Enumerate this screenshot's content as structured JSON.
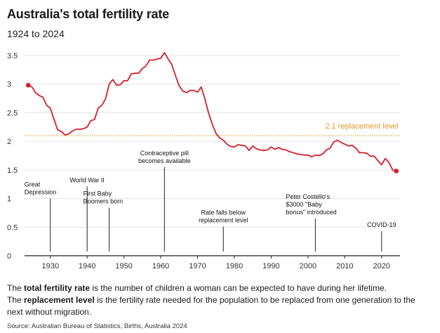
{
  "header": {
    "title": "Australia's total fertility rate",
    "subtitle": "1924 to 2024"
  },
  "chart_data": {
    "type": "line",
    "title": "Australia's total fertility rate",
    "subtitle": "1924 to 2024",
    "xlabel": "",
    "ylabel": "",
    "xlim": [
      1923,
      2025
    ],
    "ylim": [
      0,
      3.5
    ],
    "x_ticks": [
      1930,
      1940,
      1950,
      1960,
      1970,
      1980,
      1990,
      2000,
      2010,
      2020
    ],
    "y_ticks": [
      0,
      0.5,
      1,
      1.5,
      2,
      2.5,
      3,
      3.5
    ],
    "grid": "horizontal",
    "line_color": "#d61f2c",
    "series": [
      {
        "x": [
          1924,
          1925,
          1926,
          1927,
          1928,
          1929,
          1930,
          1931,
          1932,
          1933,
          1934,
          1935,
          1936,
          1937,
          1938,
          1939,
          1940,
          1941,
          1942,
          1943,
          1944,
          1945,
          1946,
          1947,
          1948,
          1949,
          1950,
          1951,
          1952,
          1953,
          1954,
          1955,
          1956,
          1957,
          1958,
          1959,
          1960,
          1961,
          1962,
          1963,
          1964,
          1965,
          1966,
          1967,
          1968,
          1969,
          1970,
          1971,
          1972,
          1973,
          1974,
          1975,
          1976,
          1977,
          1978,
          1979,
          1980,
          1981,
          1982,
          1983,
          1984,
          1985,
          1986,
          1987,
          1988,
          1989,
          1990,
          1991,
          1992,
          1993,
          1994,
          1995,
          1996,
          1997,
          1998,
          1999,
          2000,
          2001,
          2002,
          2003,
          2004,
          2005,
          2006,
          2007,
          2008,
          2009,
          2010,
          2011,
          2012,
          2013,
          2014,
          2015,
          2016,
          2017,
          2018,
          2019,
          2020,
          2021,
          2022,
          2023,
          2024
        ],
        "y": [
          2.98,
          2.95,
          2.85,
          2.8,
          2.77,
          2.63,
          2.58,
          2.38,
          2.2,
          2.17,
          2.11,
          2.13,
          2.18,
          2.21,
          2.21,
          2.22,
          2.25,
          2.36,
          2.38,
          2.58,
          2.63,
          2.74,
          3.0,
          3.08,
          2.98,
          2.99,
          3.06,
          3.06,
          3.18,
          3.19,
          3.19,
          3.27,
          3.32,
          3.42,
          3.42,
          3.44,
          3.45,
          3.55,
          3.44,
          3.34,
          3.15,
          2.97,
          2.88,
          2.85,
          2.89,
          2.89,
          2.86,
          2.95,
          2.74,
          2.49,
          2.3,
          2.14,
          2.06,
          2.02,
          1.95,
          1.91,
          1.9,
          1.94,
          1.93,
          1.92,
          1.84,
          1.92,
          1.87,
          1.85,
          1.84,
          1.85,
          1.9,
          1.86,
          1.89,
          1.86,
          1.85,
          1.82,
          1.8,
          1.78,
          1.77,
          1.76,
          1.76,
          1.73,
          1.76,
          1.75,
          1.78,
          1.85,
          1.88,
          1.99,
          2.02,
          1.98,
          1.95,
          1.92,
          1.93,
          1.88,
          1.8,
          1.8,
          1.79,
          1.74,
          1.74,
          1.66,
          1.59,
          1.7,
          1.63,
          1.5,
          1.48
        ]
      }
    ],
    "endpoints": [
      {
        "x": 1924,
        "y": 2.98
      },
      {
        "x": 2024,
        "y": 1.48
      }
    ],
    "reference_line": {
      "y": 2.1,
      "label": "2.1 replacement level",
      "color": "#e0982a"
    },
    "annotations": [
      {
        "x": 1930,
        "lines": [
          "Great",
          "Depression"
        ],
        "top": 1.0,
        "align": "start"
      },
      {
        "x": 1940,
        "lines": [
          "World War II"
        ],
        "top": 1.21,
        "align": "middle"
      },
      {
        "x": 1946,
        "lines": [
          "First Baby",
          "Boomers born"
        ],
        "top": 0.84,
        "align": "start"
      },
      {
        "x": 1961,
        "lines": [
          "Contraceptive pill",
          "becomes available"
        ],
        "top": 1.55,
        "align": "middle"
      },
      {
        "x": 1977,
        "lines": [
          "Rate falls below",
          "replacement level"
        ],
        "top": 0.51,
        "align": "middle"
      },
      {
        "x": 2002,
        "lines": [
          "Peter Costello's",
          "$3000 \"Baby",
          "bonus\" introduced"
        ],
        "top": 0.65,
        "align": "end"
      },
      {
        "x": 2020,
        "lines": [
          "COVID-19"
        ],
        "top": 0.43,
        "align": "middle"
      }
    ]
  },
  "notes": {
    "tfr_term": "total fertility rate",
    "tfr_prefix": "The ",
    "tfr_suffix": " is the number of children a woman can be expected to have during her lifetime.",
    "rep_term": "replacement level",
    "rep_prefix": "The ",
    "rep_suffix": " is the fertility rate needed for the population to be replaced from one generation to the next without migration."
  },
  "source": "Source: Australian Bureau of Statistics, Births, Australia 2024"
}
